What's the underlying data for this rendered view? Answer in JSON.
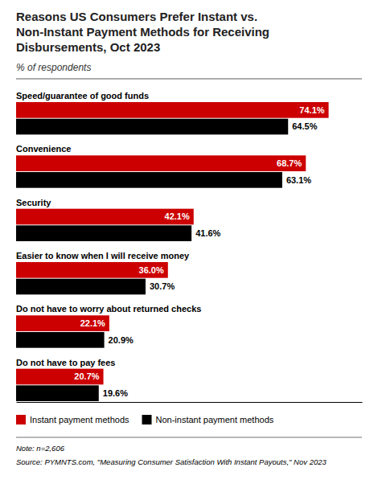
{
  "chart_data": {
    "type": "bar",
    "orientation": "horizontal",
    "title": "Reasons US Consumers Prefer Instant vs.\nNon-Instant Payment Methods for Receiving\nDisbursements, Oct 2023",
    "subtitle": "% of respondents",
    "categories": [
      "Speed/guarantee of good funds",
      "Convenience",
      "Security",
      "Easier to know when I will receive money",
      "Do not have to worry about returned checks",
      "Do not have to pay fees"
    ],
    "series": [
      {
        "name": "Instant payment methods",
        "color": "#cc0000",
        "values": [
          74.1,
          68.7,
          42.1,
          36.0,
          22.1,
          20.7
        ],
        "value_labels": [
          "74.1%",
          "68.7%",
          "42.1%",
          "36.0%",
          "22.1%",
          "20.7%"
        ]
      },
      {
        "name": "Non-instant payment methods",
        "color": "#000000",
        "values": [
          64.5,
          63.1,
          41.6,
          30.7,
          20.9,
          19.6
        ],
        "value_labels": [
          "64.5%",
          "63.1%",
          "41.6%",
          "30.7%",
          "20.9%",
          "19.6%"
        ]
      }
    ],
    "xlim": [
      0,
      82
    ],
    "data_labels": true,
    "tick_labels": false,
    "grid": false,
    "legend": "bottom",
    "annotations": [
      "Note: n=2,606",
      "Source: PYMNTS.com, \"Measuring Consumer Satisfaction With Instant Payouts,\" Nov 2023"
    ]
  }
}
